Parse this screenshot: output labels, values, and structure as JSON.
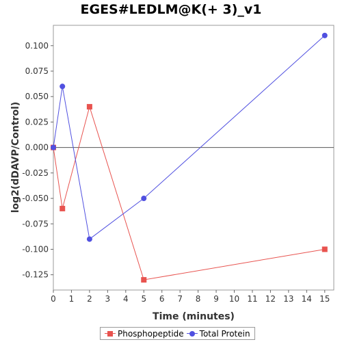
{
  "chart_data": {
    "type": "line",
    "title": "EGES#LEDLM@K(+ 3)_v1",
    "xlabel": "Time (minutes)",
    "ylabel": "log2(dDAVP/Control)",
    "xlim": [
      0,
      15.5
    ],
    "ylim": [
      -0.14,
      0.12
    ],
    "x_ticks": [
      0,
      1,
      2,
      3,
      4,
      5,
      6,
      7,
      8,
      9,
      10,
      11,
      12,
      13,
      14,
      15
    ],
    "y_ticks": [
      0.1,
      0.075,
      0.05,
      0.025,
      0.0,
      -0.025,
      -0.05,
      -0.075,
      -0.1,
      -0.125
    ],
    "y_tick_labels": [
      "0.100",
      "0.075",
      "0.050",
      "0.025",
      "0.000",
      "-0.025",
      "-0.050",
      "-0.075",
      "-0.100",
      "-0.125"
    ],
    "reference_line_y": 0,
    "grid": false,
    "legend_position": "bottom",
    "series": [
      {
        "name": "Phosphopeptide",
        "color": "#e8534f",
        "marker": "square",
        "x": [
          0,
          0.5,
          2,
          5,
          15
        ],
        "y": [
          0.0,
          -0.06,
          0.04,
          -0.13,
          -0.1
        ]
      },
      {
        "name": "Total Protein",
        "color": "#5050e0",
        "marker": "circle",
        "x": [
          0,
          0.5,
          2,
          5,
          15
        ],
        "y": [
          0.0,
          0.06,
          -0.09,
          -0.05,
          0.11
        ]
      }
    ]
  }
}
